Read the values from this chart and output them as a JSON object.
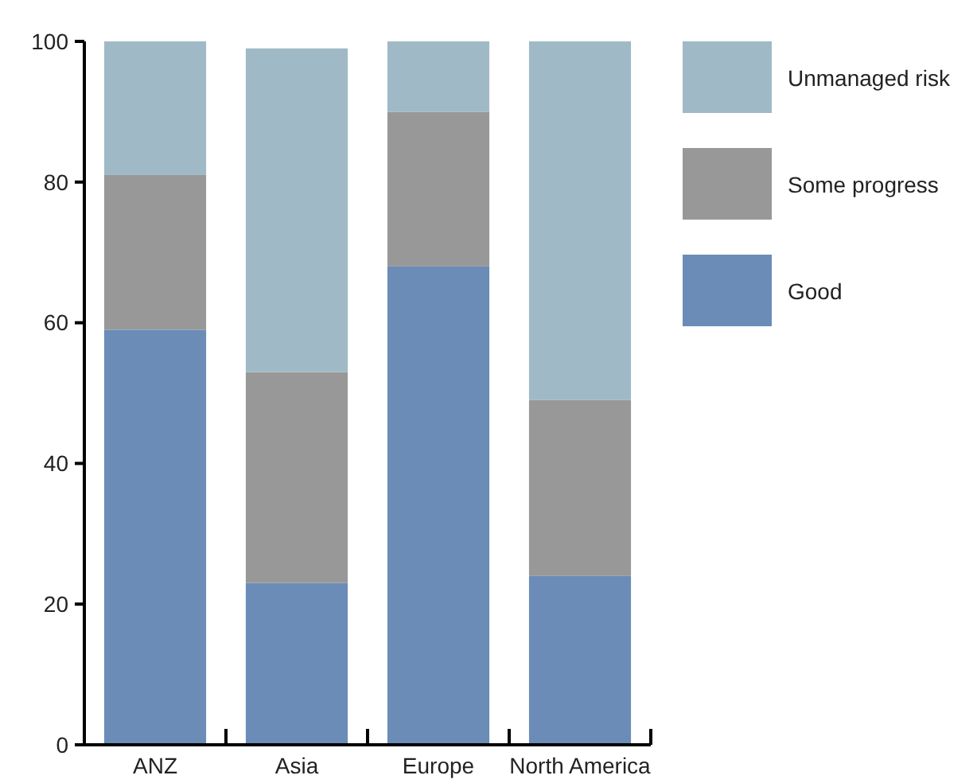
{
  "chart_data": {
    "type": "bar",
    "stacked": true,
    "categories": [
      "ANZ",
      "Asia",
      "Europe",
      "North America"
    ],
    "series": [
      {
        "name": "Good",
        "color": "#6a8cb7",
        "values": [
          59,
          23,
          68,
          24
        ]
      },
      {
        "name": "Some progress",
        "color": "#989898",
        "values": [
          22,
          30,
          22,
          25
        ]
      },
      {
        "name": "Unmanaged risk",
        "color": "#9fbac6",
        "values": [
          19,
          46,
          10,
          51
        ]
      }
    ],
    "ylim": [
      0,
      100
    ],
    "yticks": [
      0,
      20,
      40,
      60,
      80,
      100
    ],
    "grid": false,
    "legend": "right"
  }
}
